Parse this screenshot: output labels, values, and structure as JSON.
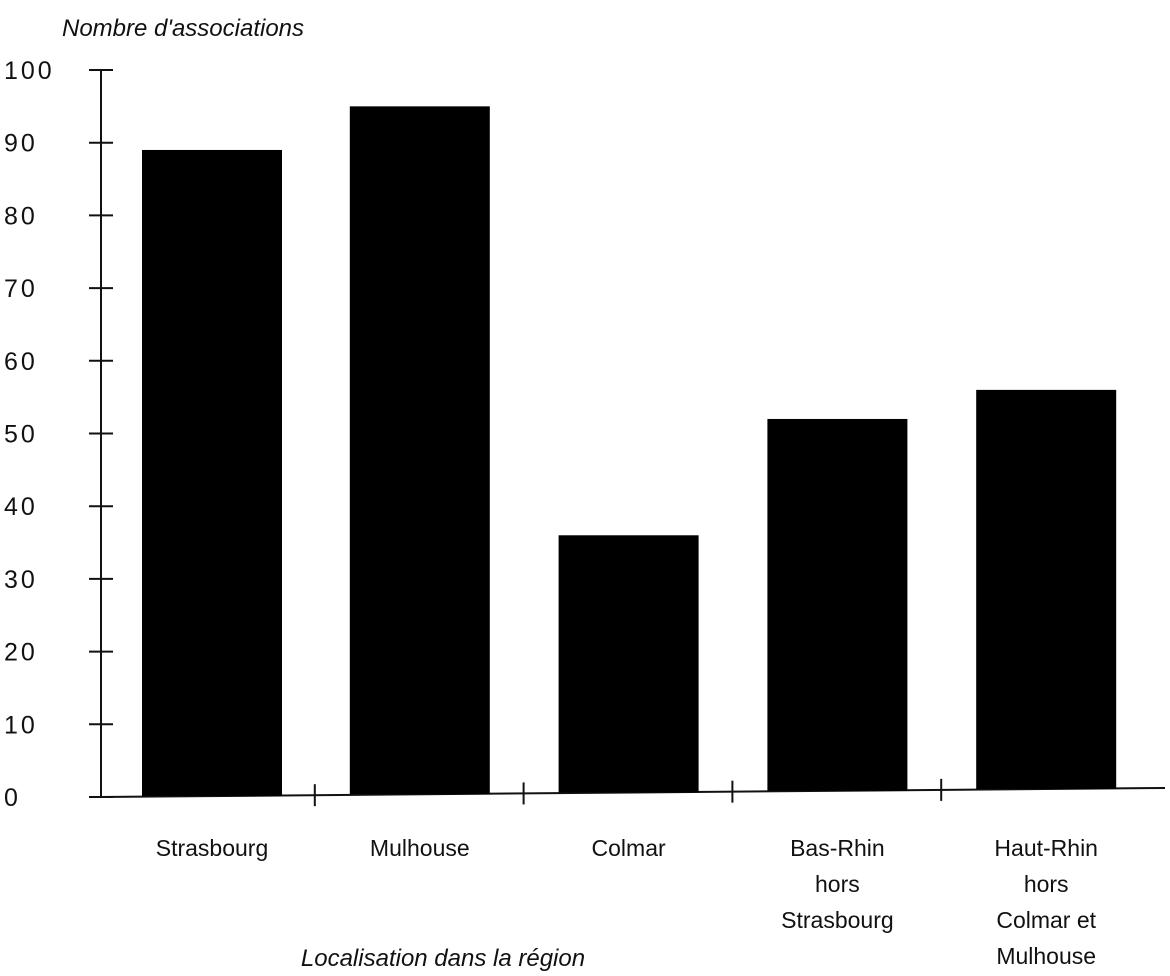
{
  "chart_data": {
    "type": "bar",
    "ylabel": "Nombre d'associations",
    "xlabel": "Localisation dans la région",
    "ylim": [
      0,
      100
    ],
    "yticks": [
      "0",
      "10",
      "20",
      "30",
      "40",
      "50",
      "60",
      "70",
      "80",
      "90",
      "100"
    ],
    "grid": false,
    "legend": "none",
    "bar_color": "#000000",
    "categories": [
      [
        "Strasbourg"
      ],
      [
        "Mulhouse"
      ],
      [
        "Colmar"
      ],
      [
        "Bas-Rhin",
        "hors",
        "Strasbourg"
      ],
      [
        "Haut-Rhin",
        "hors",
        "Colmar et",
        "Mulhouse"
      ]
    ],
    "values": [
      89,
      95,
      36,
      52,
      56
    ]
  }
}
